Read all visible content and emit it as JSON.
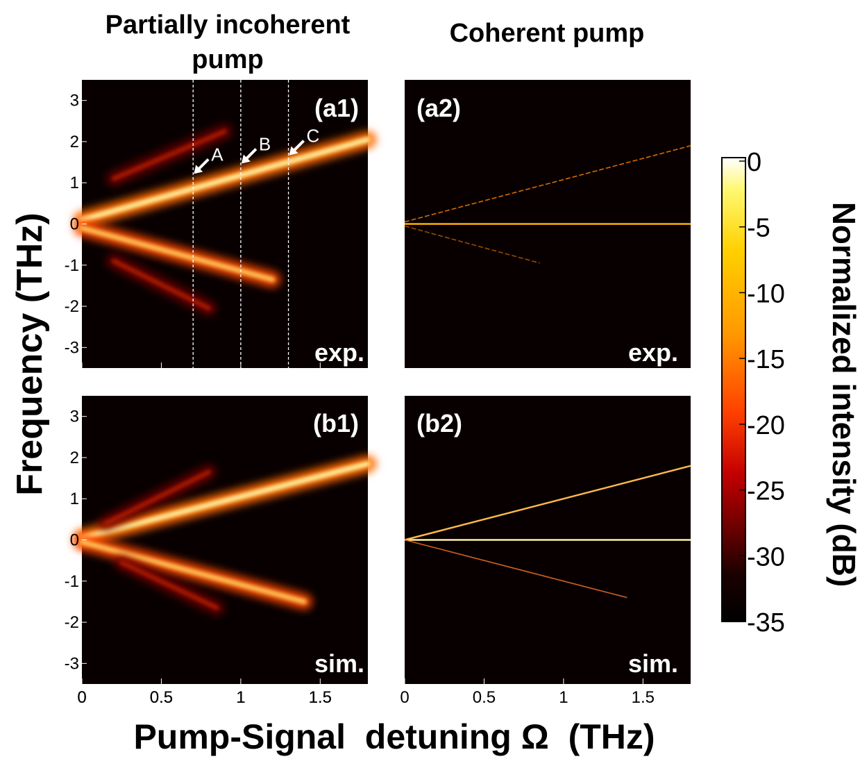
{
  "column_titles": [
    "Partially incoherent pump",
    "Coherent pump"
  ],
  "ylabel": "Frequency (THz)",
  "xlabel": "Pump-Signal  detuning Ω  (THz)",
  "colorbar": {
    "label": "Normalized intensity (dB)",
    "ticks": [
      "0",
      "-5",
      "-10",
      "-15",
      "-20",
      "-25",
      "-30",
      "-35"
    ],
    "colors": [
      "#ffffff",
      "#fff870",
      "#ffd000",
      "#ff9800",
      "#ff4000",
      "#c40000",
      "#6a0000",
      "#1a0000",
      "#000000"
    ]
  },
  "chart_data": [
    {
      "type": "heatmap",
      "panel": "(a1)",
      "corner_label": "exp.",
      "xlim": [
        0,
        1.8
      ],
      "ylim": [
        -3.5,
        3.5
      ],
      "xticks": [
        "0",
        "0.5",
        "1",
        "1.5"
      ],
      "yticks": [
        "3",
        "2",
        "1",
        "0",
        "-1",
        "-2",
        "-3"
      ],
      "series": [
        {
          "x": [
            0.0,
            1.8
          ],
          "y": [
            0,
            0
          ]
        },
        {
          "x": [
            0.0,
            1.8
          ],
          "y": [
            0.1,
            2.05
          ]
        },
        {
          "x": [
            0.0,
            1.2
          ],
          "y": [
            -0.1,
            -1.35
          ]
        },
        {
          "x": [
            0.2,
            0.9
          ],
          "y": [
            1.1,
            2.25
          ]
        },
        {
          "x": [
            0.2,
            0.8
          ],
          "y": [
            -0.9,
            -2.05
          ]
        }
      ],
      "markers": [
        {
          "label": "A",
          "x": 0.7,
          "y": 1.2
        },
        {
          "label": "B",
          "x": 1.0,
          "y": 1.45
        },
        {
          "label": "C",
          "x": 1.3,
          "y": 1.65
        }
      ]
    },
    {
      "type": "heatmap",
      "panel": "(a2)",
      "corner_label": "exp.",
      "xlim": [
        0,
        1.8
      ],
      "ylim": [
        -3.5,
        3.5
      ],
      "series": [
        {
          "x": [
            0.0,
            1.8
          ],
          "y": [
            0,
            0
          ]
        },
        {
          "x": [
            0.0,
            1.8
          ],
          "y": [
            0.05,
            1.9
          ]
        },
        {
          "x": [
            0.0,
            0.85
          ],
          "y": [
            -0.05,
            -0.95
          ]
        }
      ]
    },
    {
      "type": "heatmap",
      "panel": "(b1)",
      "corner_label": "sim.",
      "xlim": [
        0,
        1.8
      ],
      "ylim": [
        -3.5,
        3.5
      ],
      "xticks": [
        "0",
        "0.5",
        "1",
        "1.5"
      ],
      "yticks": [
        "3",
        "2",
        "1",
        "0",
        "-1",
        "-2",
        "-3"
      ],
      "series": [
        {
          "x": [
            0.0,
            1.8
          ],
          "y": [
            0,
            0
          ]
        },
        {
          "x": [
            0.0,
            1.8
          ],
          "y": [
            0.05,
            1.85
          ]
        },
        {
          "x": [
            0.0,
            1.4
          ],
          "y": [
            -0.05,
            -1.5
          ]
        },
        {
          "x": [
            0.15,
            0.8
          ],
          "y": [
            0.4,
            1.65
          ]
        },
        {
          "x": [
            0.25,
            0.85
          ],
          "y": [
            -0.55,
            -1.65
          ]
        }
      ]
    },
    {
      "type": "heatmap",
      "panel": "(b2)",
      "corner_label": "sim.",
      "xlim": [
        0,
        1.8
      ],
      "ylim": [
        -3.5,
        3.5
      ],
      "xticks": [
        "0",
        "0.5",
        "1",
        "1.5"
      ],
      "series": [
        {
          "x": [
            0.0,
            1.8
          ],
          "y": [
            0,
            0
          ]
        },
        {
          "x": [
            0.0,
            1.8
          ],
          "y": [
            0,
            1.8
          ]
        },
        {
          "x": [
            0.0,
            1.4
          ],
          "y": [
            0,
            -1.4
          ]
        }
      ]
    }
  ]
}
